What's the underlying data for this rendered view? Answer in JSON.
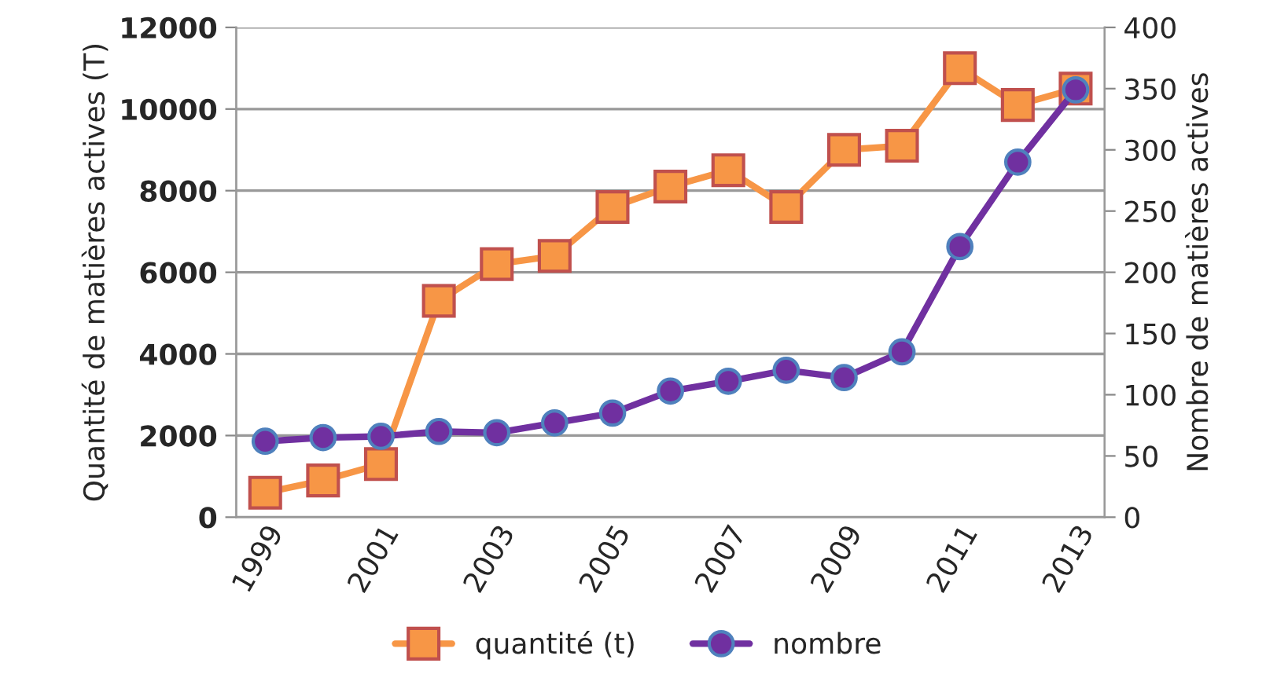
{
  "chart_data": {
    "type": "line",
    "categories": [
      "1999",
      null,
      "2001",
      null,
      "2003",
      null,
      "2005",
      null,
      "2007",
      null,
      "2009",
      null,
      "2011",
      null,
      "2013"
    ],
    "ylabel": "Quantité de matières actives (T)",
    "y2label": "Nombre de matières actives",
    "ylim": [
      0,
      12000
    ],
    "yticks": [
      0,
      2000,
      4000,
      6000,
      8000,
      10000,
      12000
    ],
    "y2lim": [
      0,
      400
    ],
    "y2ticks": [
      0,
      50,
      100,
      150,
      200,
      250,
      300,
      350,
      400
    ],
    "grid": "y",
    "legend": "bottom",
    "series": [
      {
        "name": "quantité (t)",
        "color": "#f79646",
        "marker": "square",
        "values": [
          600,
          900,
          1300,
          5300,
          6200,
          6400,
          7600,
          8100,
          8500,
          7600,
          9000,
          9100,
          11000,
          10100,
          10500
        ]
      },
      {
        "name": "nombre",
        "color": "#7030a0",
        "marker": "circle",
        "axis": "y2",
        "values": [
          62,
          65,
          66,
          70,
          69,
          77,
          85,
          103,
          111,
          120,
          114,
          135,
          221,
          290,
          349
        ]
      }
    ]
  }
}
